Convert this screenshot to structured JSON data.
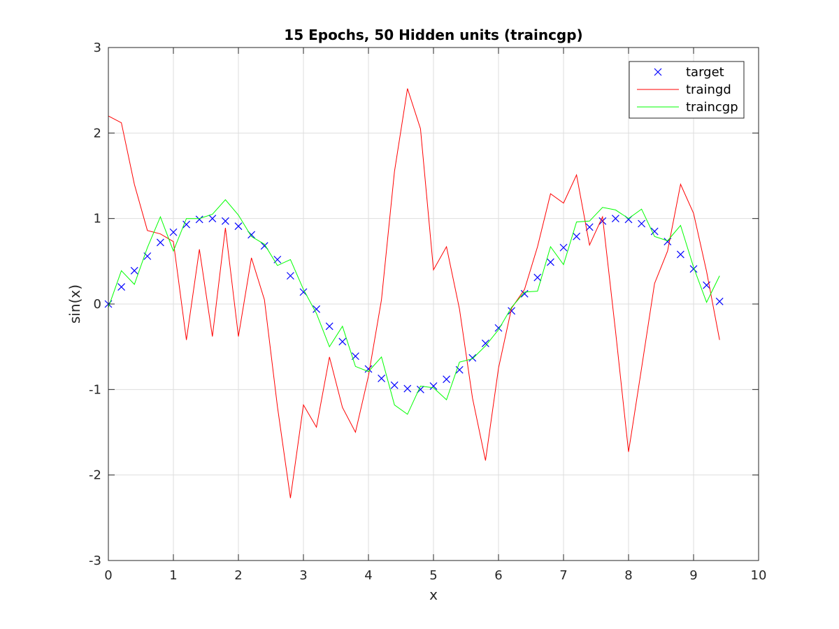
{
  "chart_data": {
    "type": "line",
    "title": "15 Epochs, 50 Hidden units (traincgp)",
    "xlabel": "x",
    "ylabel": "sin(x)",
    "xlim": [
      0,
      10
    ],
    "ylim": [
      -3,
      3
    ],
    "xticks": [
      0,
      1,
      2,
      3,
      4,
      5,
      6,
      7,
      8,
      9,
      10
    ],
    "yticks": [
      -3,
      -2,
      -1,
      0,
      1,
      2,
      3
    ],
    "grid": true,
    "legend_position": "top-right",
    "x": [
      0,
      0.2,
      0.4,
      0.6,
      0.8,
      1.0,
      1.2,
      1.4,
      1.6,
      1.8,
      2.0,
      2.2,
      2.4,
      2.6,
      2.8,
      3.0,
      3.2,
      3.4,
      3.6,
      3.8,
      4.0,
      4.2,
      4.4,
      4.6,
      4.8,
      5.0,
      5.2,
      5.4,
      5.6,
      5.8,
      6.0,
      6.2,
      6.4,
      6.6,
      6.8,
      7.0,
      7.2,
      7.4,
      7.6,
      7.8,
      8.0,
      8.2,
      8.4,
      8.6,
      8.8,
      9.0,
      9.2,
      9.4
    ],
    "series": [
      {
        "name": "target",
        "style": "marker-x",
        "color": "#0000ff",
        "values": [
          0.0,
          0.2,
          0.39,
          0.56,
          0.72,
          0.84,
          0.93,
          0.99,
          1.0,
          0.97,
          0.91,
          0.81,
          0.68,
          0.52,
          0.33,
          0.14,
          -0.06,
          -0.26,
          -0.44,
          -0.61,
          -0.76,
          -0.87,
          -0.95,
          -0.99,
          -1.0,
          -0.96,
          -0.88,
          -0.77,
          -0.63,
          -0.46,
          -0.28,
          -0.08,
          0.12,
          0.31,
          0.49,
          0.66,
          0.79,
          0.9,
          0.97,
          1.0,
          0.99,
          0.94,
          0.85,
          0.73,
          0.58,
          0.41,
          0.22,
          0.03
        ]
      },
      {
        "name": "traingd",
        "style": "line",
        "color": "#ff0000",
        "values": [
          2.2,
          2.12,
          1.4,
          0.86,
          0.82,
          0.73,
          -0.42,
          0.64,
          -0.38,
          0.89,
          -0.38,
          0.54,
          0.05,
          -1.2,
          -2.27,
          -1.18,
          -1.44,
          -0.62,
          -1.21,
          -1.5,
          -0.84,
          0.05,
          1.55,
          2.52,
          2.05,
          0.4,
          0.67,
          -0.06,
          -1.1,
          -1.83,
          -0.75,
          -0.05,
          0.17,
          0.67,
          1.29,
          1.18,
          1.51,
          0.69,
          1.02,
          -0.32,
          -1.73,
          -0.75,
          0.24,
          0.62,
          1.4,
          1.06,
          0.38,
          -0.42
        ]
      },
      {
        "name": "traincgp",
        "style": "line",
        "color": "#00ff00",
        "values": [
          -0.04,
          0.39,
          0.23,
          0.66,
          1.02,
          0.62,
          1.0,
          1.0,
          1.05,
          1.22,
          1.04,
          0.79,
          0.7,
          0.45,
          0.52,
          0.17,
          -0.11,
          -0.5,
          -0.26,
          -0.73,
          -0.79,
          -0.62,
          -1.18,
          -1.29,
          -0.96,
          -0.98,
          -1.12,
          -0.68,
          -0.64,
          -0.49,
          -0.3,
          -0.04,
          0.14,
          0.15,
          0.67,
          0.46,
          0.96,
          0.97,
          1.13,
          1.1,
          1.0,
          1.11,
          0.79,
          0.74,
          0.92,
          0.43,
          0.02,
          0.33
        ]
      }
    ]
  }
}
